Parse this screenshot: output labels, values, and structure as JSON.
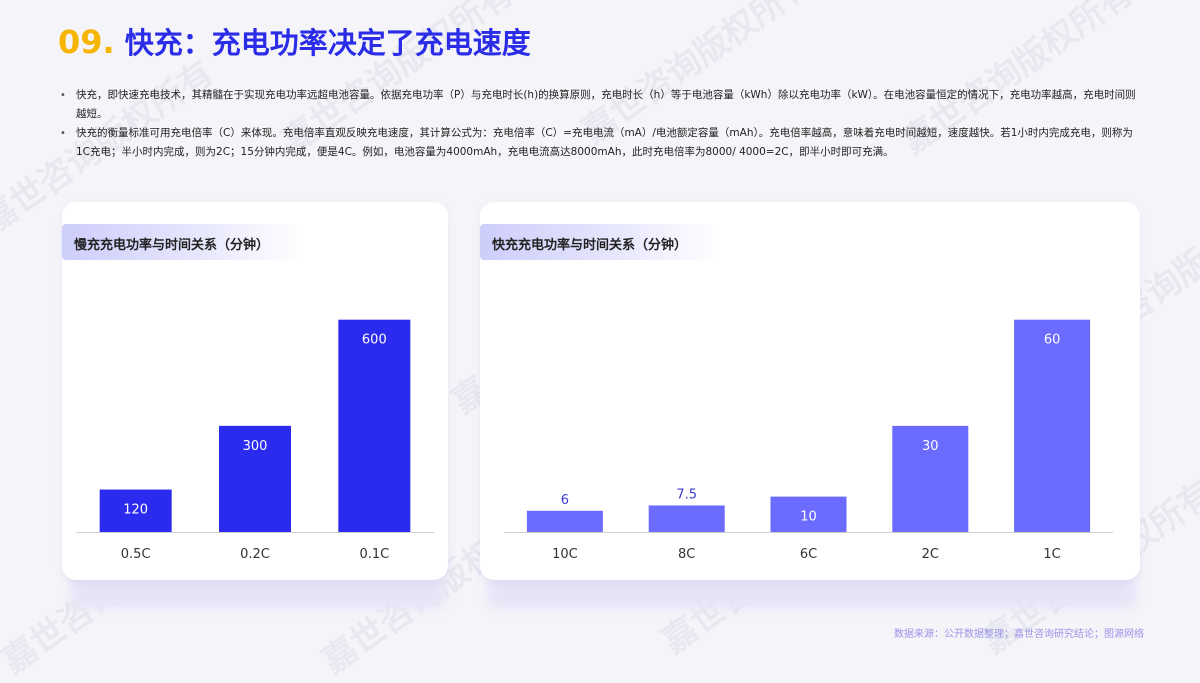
{
  "header": {
    "number": "09.",
    "title": "快充：充电功率决定了充电速度"
  },
  "bullets": [
    "快充，即快速充电技术，其精髓在于实现充电功率远超电池容量。依据充电功率（P）与充电时长(h)的换算原则，充电时长（h）等于电池容量（kWh）除以充电功率（kW）。在电池容量恒定的情况下，充电功率越高，充电时间则越短。",
    "快充的衡量标准可用充电倍率（C）来体现。充电倍率直观反映充电速度，其计算公式为：充电倍率（C）=充电电流（mA）/电池额定容量（mAh）。充电倍率越高，意味着充电时间越短，速度越快。若1小时内完成充电，则称为1C充电；半小时内完成，则为2C；15分钟内完成，便是4C。例如，电池容量为4000mAh，充电电流高达8000mAh，此时充电倍率为8000/ 4000=2C，即半小时即可充满。"
  ],
  "chart_data": [
    {
      "type": "bar",
      "title": "慢充充电功率与时间关系（分钟）",
      "categories": [
        "0.5C",
        "0.2C",
        "0.1C"
      ],
      "values": [
        120,
        300,
        600
      ],
      "value_labels": [
        "120",
        "300",
        "600"
      ],
      "ylim": [
        0,
        650
      ],
      "color": "#2b2bf0",
      "grid": false
    },
    {
      "type": "bar",
      "title": "快充充电功率与时间关系（分钟）",
      "categories": [
        "10C",
        "8C",
        "6C",
        "2C",
        "1C"
      ],
      "values": [
        6,
        7.5,
        10,
        30,
        60
      ],
      "value_labels": [
        "6",
        "7.5",
        "10",
        "30",
        "60"
      ],
      "ylim": [
        0,
        65
      ],
      "color": "#6b6bff",
      "grid": false
    }
  ],
  "footer": {
    "source": "数据来源：公开数据整理；嘉世咨询研究结论；图源网络"
  },
  "watermark": "嘉世咨询版权所有"
}
